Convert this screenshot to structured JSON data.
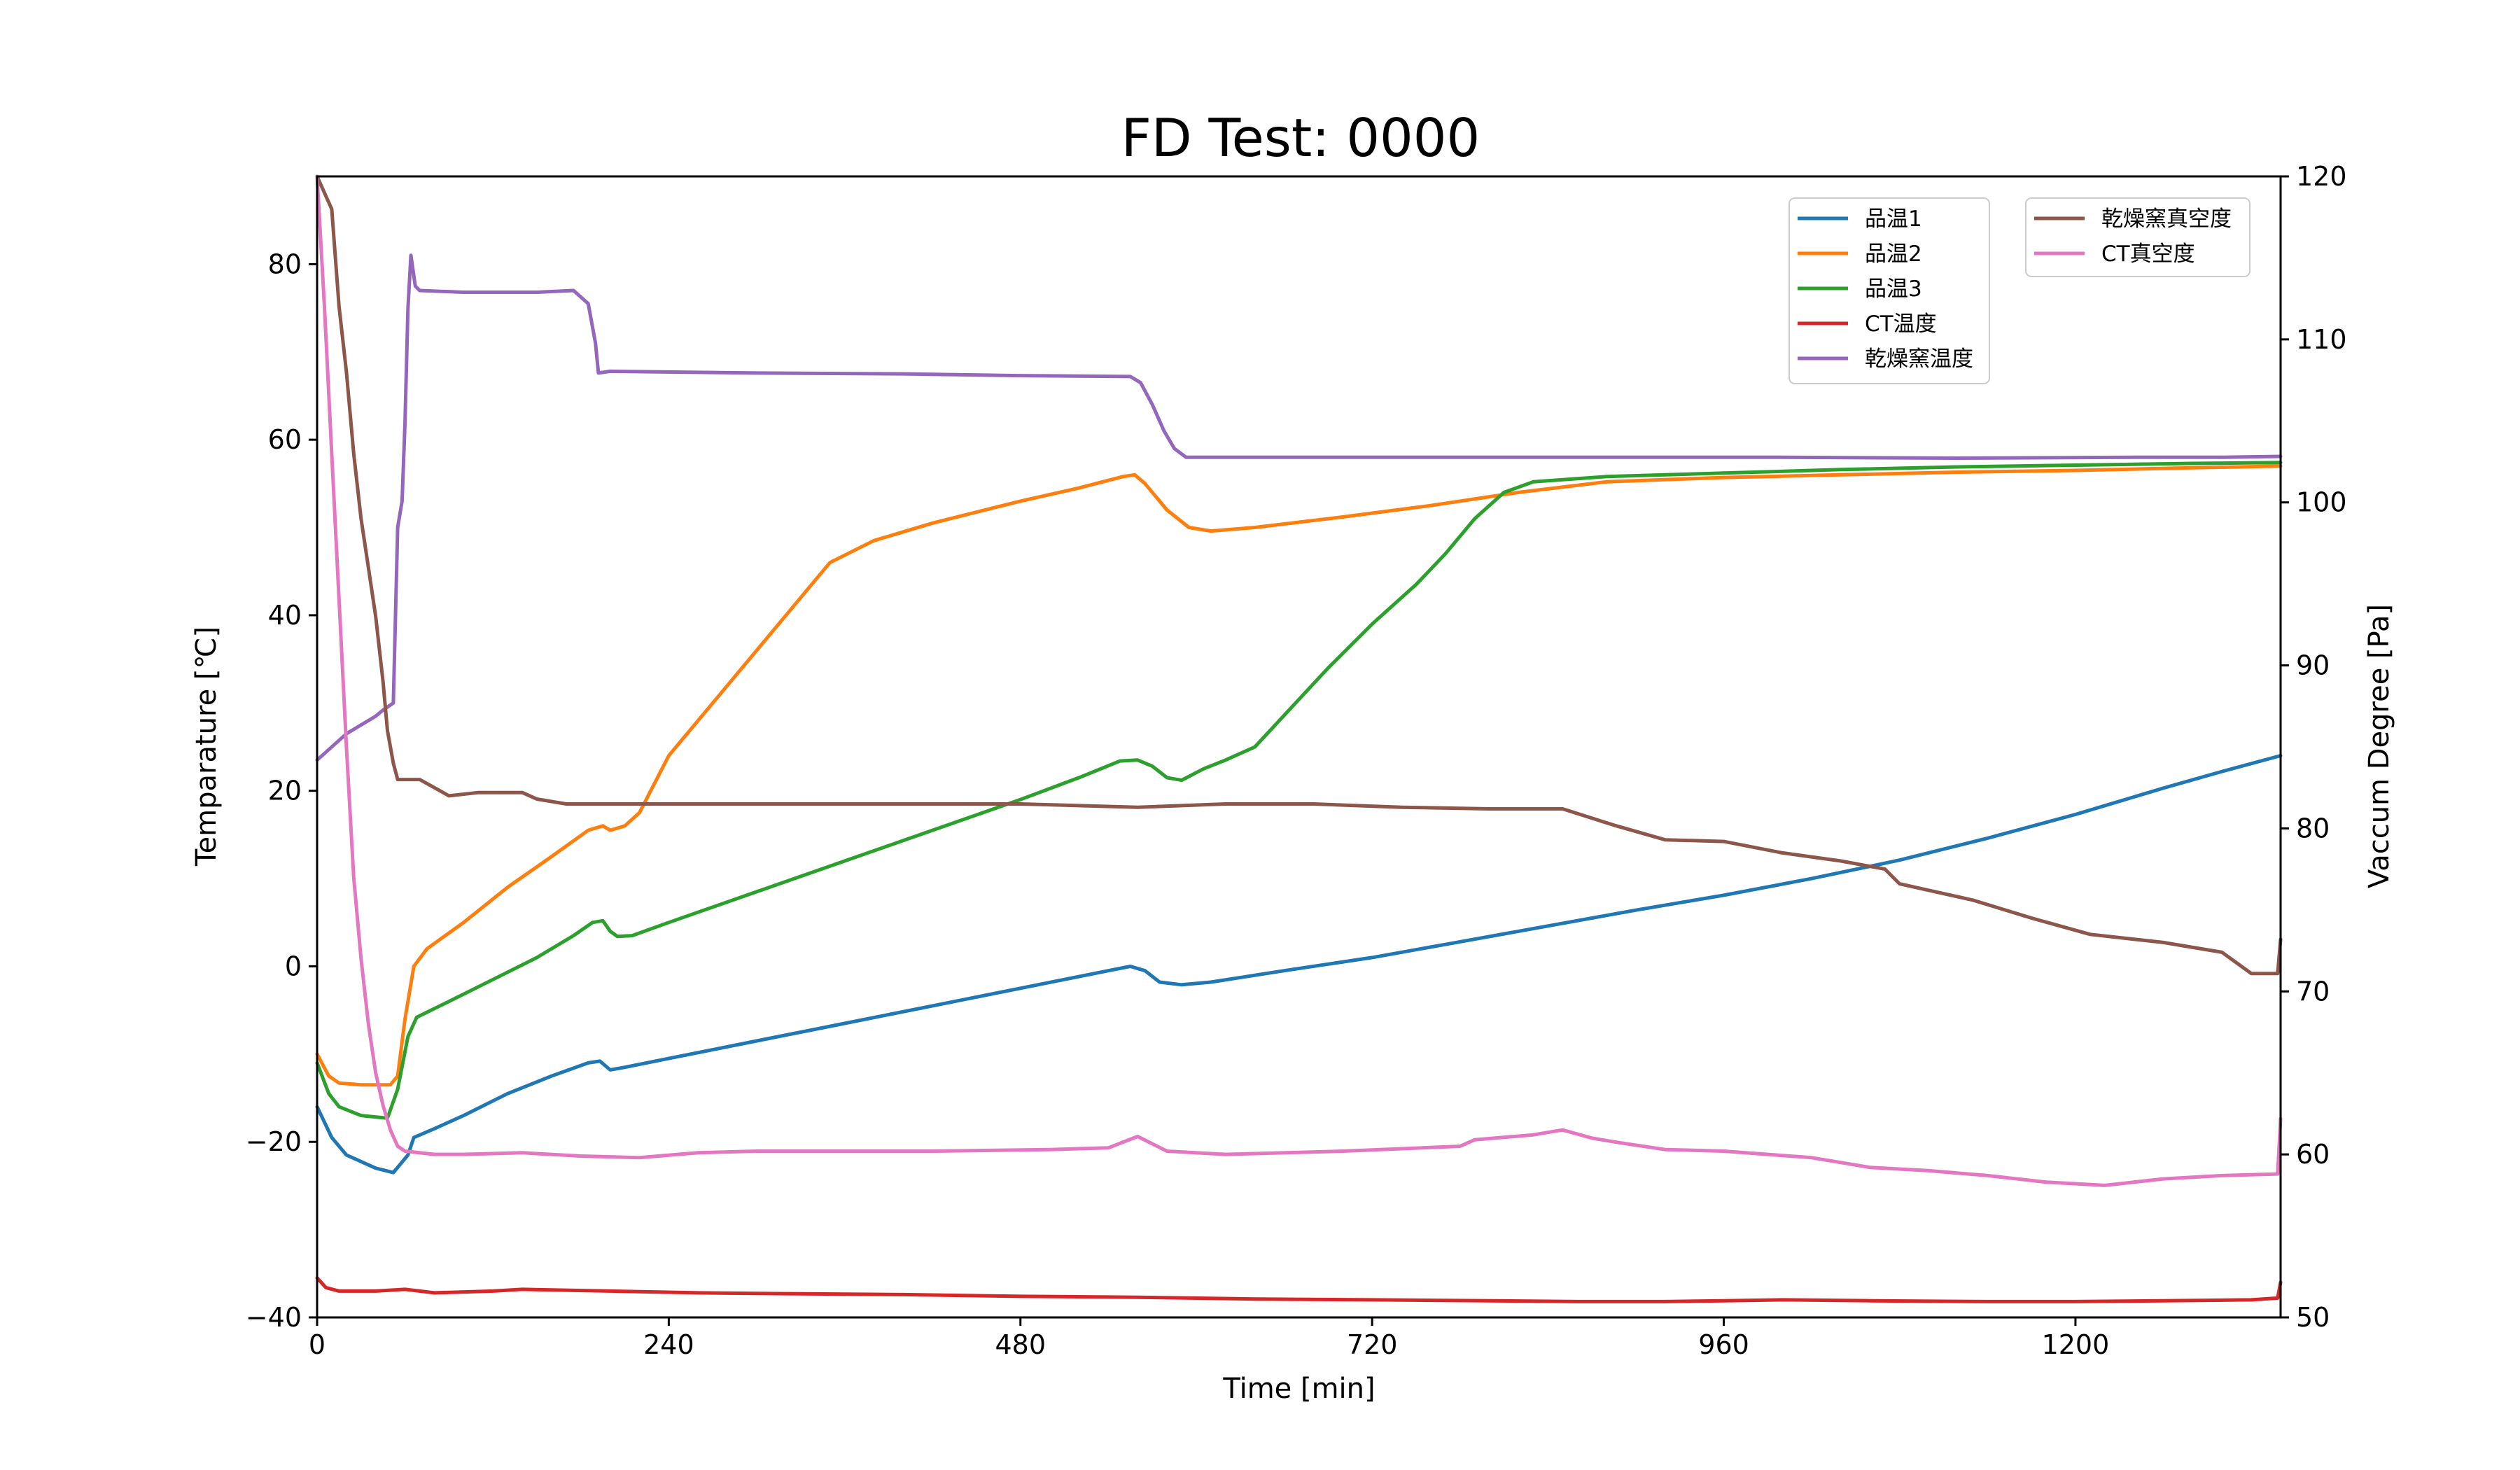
{
  "chart_data": {
    "type": "line",
    "title": "FD Test: 0000",
    "xlabel": "Time [min]",
    "ylabel_left": "Temparature [℃]",
    "ylabel_right": "Vaccum Degree [Pa]",
    "xlim": [
      0,
      1340
    ],
    "ylim_left": [
      -40,
      90
    ],
    "ylim_right": [
      50,
      120
    ],
    "x_ticks": [
      0,
      240,
      480,
      720,
      960,
      1200
    ],
    "x_tick_labels": [
      "0",
      "240",
      "480",
      "720",
      "960",
      "1200"
    ],
    "y_ticks_left": [
      -40,
      -20,
      0,
      20,
      40,
      60,
      80
    ],
    "y_tick_labels_left": [
      "−40",
      "−20",
      "0",
      "20",
      "40",
      "60",
      "80"
    ],
    "y_ticks_right": [
      50,
      60,
      70,
      80,
      90,
      100,
      110,
      120
    ],
    "y_tick_labels_right": [
      "50",
      "60",
      "70",
      "80",
      "90",
      "100",
      "110",
      "120"
    ],
    "grid": false,
    "legend_left_placement": "upper-right (inner)",
    "legend_right_placement": "top-right",
    "series": [
      {
        "name": "品温1",
        "axis": "left",
        "color": "#1f77b4",
        "points": [
          [
            0,
            -16
          ],
          [
            10,
            -19.5
          ],
          [
            20,
            -21.5
          ],
          [
            40,
            -23
          ],
          [
            52,
            -23.5
          ],
          [
            62,
            -21.5
          ],
          [
            66,
            -19.5
          ],
          [
            80,
            -18.5
          ],
          [
            100,
            -17
          ],
          [
            130,
            -14.5
          ],
          [
            160,
            -12.5
          ],
          [
            185,
            -11
          ],
          [
            193,
            -10.8
          ],
          [
            200,
            -11.8
          ],
          [
            210,
            -11.5
          ],
          [
            240,
            -10.5
          ],
          [
            300,
            -8.5
          ],
          [
            360,
            -6.5
          ],
          [
            420,
            -4.5
          ],
          [
            480,
            -2.5
          ],
          [
            540,
            -0.5
          ],
          [
            555,
            0
          ],
          [
            565,
            -0.5
          ],
          [
            575,
            -1.8
          ],
          [
            590,
            -2.1
          ],
          [
            610,
            -1.8
          ],
          [
            660,
            -0.5
          ],
          [
            720,
            1
          ],
          [
            780,
            2.8
          ],
          [
            840,
            4.6
          ],
          [
            900,
            6.4
          ],
          [
            960,
            8.1
          ],
          [
            1020,
            10
          ],
          [
            1080,
            12.1
          ],
          [
            1140,
            14.6
          ],
          [
            1200,
            17.3
          ],
          [
            1260,
            20.3
          ],
          [
            1300,
            22.2
          ],
          [
            1340,
            24
          ]
        ]
      },
      {
        "name": "品温2",
        "axis": "left",
        "color": "#ff7f0e",
        "points": [
          [
            0,
            -10
          ],
          [
            8,
            -12.5
          ],
          [
            15,
            -13.3
          ],
          [
            30,
            -13.5
          ],
          [
            50,
            -13.5
          ],
          [
            55,
            -12.5
          ],
          [
            60,
            -6
          ],
          [
            66,
            0
          ],
          [
            75,
            2
          ],
          [
            100,
            5
          ],
          [
            130,
            9
          ],
          [
            160,
            12.5
          ],
          [
            185,
            15.5
          ],
          [
            195,
            16
          ],
          [
            200,
            15.5
          ],
          [
            210,
            16
          ],
          [
            220,
            17.5
          ],
          [
            240,
            24
          ],
          [
            270,
            30
          ],
          [
            300,
            36
          ],
          [
            330,
            42
          ],
          [
            350,
            46
          ],
          [
            380,
            48.5
          ],
          [
            420,
            50.5
          ],
          [
            480,
            53
          ],
          [
            520,
            54.5
          ],
          [
            550,
            55.8
          ],
          [
            558,
            56
          ],
          [
            565,
            55
          ],
          [
            580,
            52
          ],
          [
            595,
            50
          ],
          [
            610,
            49.6
          ],
          [
            640,
            50
          ],
          [
            700,
            51.2
          ],
          [
            760,
            52.5
          ],
          [
            820,
            54
          ],
          [
            880,
            55.2
          ],
          [
            960,
            55.7
          ],
          [
            1040,
            56
          ],
          [
            1120,
            56.3
          ],
          [
            1200,
            56.5
          ],
          [
            1280,
            56.8
          ],
          [
            1340,
            57
          ]
        ]
      },
      {
        "name": "品温3",
        "axis": "left",
        "color": "#2ca02c",
        "points": [
          [
            0,
            -11
          ],
          [
            8,
            -14.5
          ],
          [
            15,
            -16
          ],
          [
            30,
            -17
          ],
          [
            48,
            -17.3
          ],
          [
            55,
            -14
          ],
          [
            62,
            -8
          ],
          [
            68,
            -5.8
          ],
          [
            90,
            -4
          ],
          [
            120,
            -1.5
          ],
          [
            150,
            1
          ],
          [
            175,
            3.5
          ],
          [
            188,
            5
          ],
          [
            195,
            5.2
          ],
          [
            200,
            4
          ],
          [
            205,
            3.4
          ],
          [
            215,
            3.5
          ],
          [
            240,
            5
          ],
          [
            300,
            8.5
          ],
          [
            360,
            12
          ],
          [
            420,
            15.5
          ],
          [
            480,
            19
          ],
          [
            520,
            21.5
          ],
          [
            548,
            23.4
          ],
          [
            560,
            23.5
          ],
          [
            570,
            22.8
          ],
          [
            580,
            21.5
          ],
          [
            590,
            21.2
          ],
          [
            605,
            22.5
          ],
          [
            620,
            23.5
          ],
          [
            640,
            25
          ],
          [
            665,
            29.5
          ],
          [
            690,
            34
          ],
          [
            720,
            39
          ],
          [
            750,
            43.5
          ],
          [
            770,
            47
          ],
          [
            790,
            51
          ],
          [
            810,
            54
          ],
          [
            830,
            55.2
          ],
          [
            880,
            55.8
          ],
          [
            960,
            56.2
          ],
          [
            1040,
            56.6
          ],
          [
            1120,
            56.9
          ],
          [
            1200,
            57.1
          ],
          [
            1280,
            57.3
          ],
          [
            1340,
            57.4
          ]
        ]
      },
      {
        "name": "CT温度",
        "axis": "left",
        "color": "#d62728",
        "points": [
          [
            0,
            -35.5
          ],
          [
            6,
            -36.6
          ],
          [
            15,
            -37
          ],
          [
            40,
            -37
          ],
          [
            60,
            -36.8
          ],
          [
            80,
            -37.2
          ],
          [
            120,
            -37
          ],
          [
            140,
            -36.8
          ],
          [
            200,
            -37
          ],
          [
            260,
            -37.2
          ],
          [
            320,
            -37.3
          ],
          [
            400,
            -37.4
          ],
          [
            480,
            -37.6
          ],
          [
            560,
            -37.7
          ],
          [
            640,
            -37.9
          ],
          [
            720,
            -38
          ],
          [
            800,
            -38.1
          ],
          [
            860,
            -38.2
          ],
          [
            920,
            -38.2
          ],
          [
            960,
            -38.1
          ],
          [
            1000,
            -38
          ],
          [
            1060,
            -38.1
          ],
          [
            1140,
            -38.2
          ],
          [
            1200,
            -38.2
          ],
          [
            1260,
            -38.1
          ],
          [
            1320,
            -38
          ],
          [
            1338,
            -37.8
          ],
          [
            1340,
            -36
          ]
        ]
      },
      {
        "name": "乾燥窯温度",
        "axis": "left",
        "color": "#9467bd",
        "points": [
          [
            0,
            23.5
          ],
          [
            20,
            26.5
          ],
          [
            40,
            28.5
          ],
          [
            45,
            29.2
          ],
          [
            52,
            30
          ],
          [
            55,
            50
          ],
          [
            58,
            53
          ],
          [
            60,
            62
          ],
          [
            62,
            75
          ],
          [
            64,
            81
          ],
          [
            67,
            77.5
          ],
          [
            70,
            77
          ],
          [
            100,
            76.8
          ],
          [
            150,
            76.8
          ],
          [
            175,
            77
          ],
          [
            185,
            75.5
          ],
          [
            190,
            71
          ],
          [
            192,
            67.6
          ],
          [
            200,
            67.8
          ],
          [
            300,
            67.6
          ],
          [
            400,
            67.5
          ],
          [
            480,
            67.3
          ],
          [
            555,
            67.2
          ],
          [
            562,
            66.5
          ],
          [
            570,
            64
          ],
          [
            578,
            61
          ],
          [
            585,
            59
          ],
          [
            593,
            58
          ],
          [
            640,
            58
          ],
          [
            760,
            58
          ],
          [
            880,
            58
          ],
          [
            1000,
            58
          ],
          [
            1120,
            57.9
          ],
          [
            1240,
            58
          ],
          [
            1300,
            58
          ],
          [
            1340,
            58.1
          ]
        ]
      },
      {
        "name": "乾燥窯真空度",
        "axis": "right",
        "color": "#8c564b",
        "points": [
          [
            0,
            120
          ],
          [
            10,
            118
          ],
          [
            15,
            112
          ],
          [
            20,
            108
          ],
          [
            25,
            103
          ],
          [
            30,
            99
          ],
          [
            35,
            96
          ],
          [
            40,
            93
          ],
          [
            45,
            89
          ],
          [
            48,
            86
          ],
          [
            52,
            84
          ],
          [
            55,
            83
          ],
          [
            70,
            83
          ],
          [
            80,
            82.5
          ],
          [
            90,
            82
          ],
          [
            110,
            82.2
          ],
          [
            140,
            82.2
          ],
          [
            150,
            81.8
          ],
          [
            170,
            81.5
          ],
          [
            200,
            81.5
          ],
          [
            250,
            81.5
          ],
          [
            300,
            81.5
          ],
          [
            360,
            81.5
          ],
          [
            420,
            81.5
          ],
          [
            480,
            81.5
          ],
          [
            560,
            81.3
          ],
          [
            620,
            81.5
          ],
          [
            680,
            81.5
          ],
          [
            740,
            81.3
          ],
          [
            800,
            81.2
          ],
          [
            850,
            81.2
          ],
          [
            885,
            80.2
          ],
          [
            920,
            79.3
          ],
          [
            960,
            79.2
          ],
          [
            1000,
            78.5
          ],
          [
            1040,
            78
          ],
          [
            1070,
            77.5
          ],
          [
            1080,
            76.6
          ],
          [
            1100,
            76.2
          ],
          [
            1130,
            75.6
          ],
          [
            1170,
            74.5
          ],
          [
            1210,
            73.5
          ],
          [
            1260,
            73
          ],
          [
            1300,
            72.4
          ],
          [
            1320,
            71.1
          ],
          [
            1338,
            71.1
          ],
          [
            1340,
            73.2
          ]
        ]
      },
      {
        "name": "CT真空度",
        "axis": "right",
        "color": "#e377c2",
        "points": [
          [
            0,
            120
          ],
          [
            5,
            112
          ],
          [
            10,
            103
          ],
          [
            15,
            94
          ],
          [
            20,
            85
          ],
          [
            25,
            77
          ],
          [
            30,
            72
          ],
          [
            35,
            68
          ],
          [
            40,
            65
          ],
          [
            45,
            63
          ],
          [
            50,
            61.5
          ],
          [
            55,
            60.5
          ],
          [
            60,
            60.2
          ],
          [
            80,
            60
          ],
          [
            100,
            60
          ],
          [
            140,
            60.1
          ],
          [
            180,
            59.9
          ],
          [
            220,
            59.8
          ],
          [
            260,
            60.1
          ],
          [
            300,
            60.2
          ],
          [
            380,
            60.2
          ],
          [
            420,
            60.2
          ],
          [
            500,
            60.3
          ],
          [
            540,
            60.4
          ],
          [
            560,
            61.1
          ],
          [
            580,
            60.2
          ],
          [
            620,
            60
          ],
          [
            700,
            60.2
          ],
          [
            780,
            60.5
          ],
          [
            790,
            60.9
          ],
          [
            830,
            61.2
          ],
          [
            850,
            61.5
          ],
          [
            870,
            61
          ],
          [
            890,
            60.7
          ],
          [
            920,
            60.3
          ],
          [
            960,
            60.2
          ],
          [
            1020,
            59.8
          ],
          [
            1060,
            59.2
          ],
          [
            1100,
            59
          ],
          [
            1140,
            58.7
          ],
          [
            1180,
            58.3
          ],
          [
            1220,
            58.1
          ],
          [
            1260,
            58.5
          ],
          [
            1300,
            58.7
          ],
          [
            1338,
            58.8
          ],
          [
            1340,
            62.2
          ]
        ]
      }
    ]
  }
}
